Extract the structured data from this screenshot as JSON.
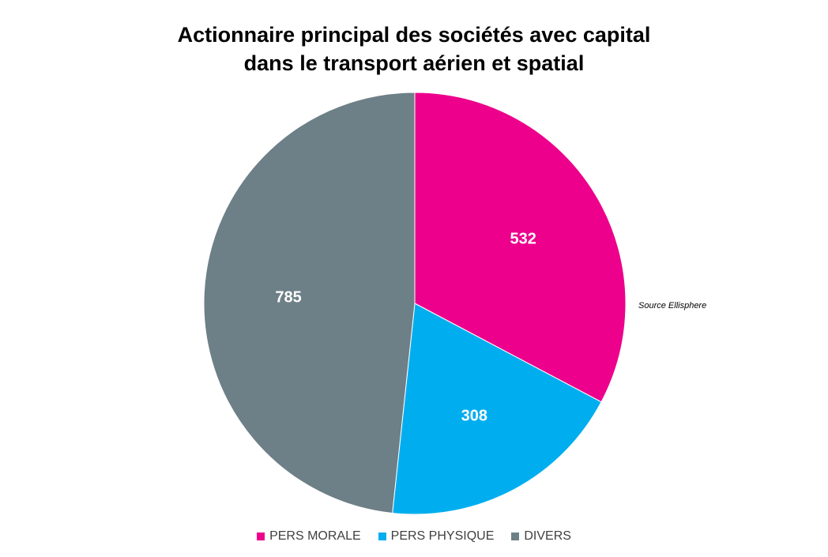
{
  "chart_data": {
    "type": "pie",
    "title_lines": [
      "Actionnaire principal des sociétés avec capital",
      "dans le transport aérien et spatial"
    ],
    "slices": [
      {
        "label": "PERS MORALE",
        "value": 532,
        "color": "#EC008C"
      },
      {
        "label": "PERS PHYSIQUE",
        "value": 308,
        "color": "#00AEEF"
      },
      {
        "label": "DIVERS",
        "value": 785,
        "color": "#6D7F87"
      }
    ],
    "start_angle": "12 o'clock",
    "direction": "clockwise",
    "data_labels": "inside",
    "legend_position": "bottom"
  },
  "source_note": "Source Ellisphere"
}
